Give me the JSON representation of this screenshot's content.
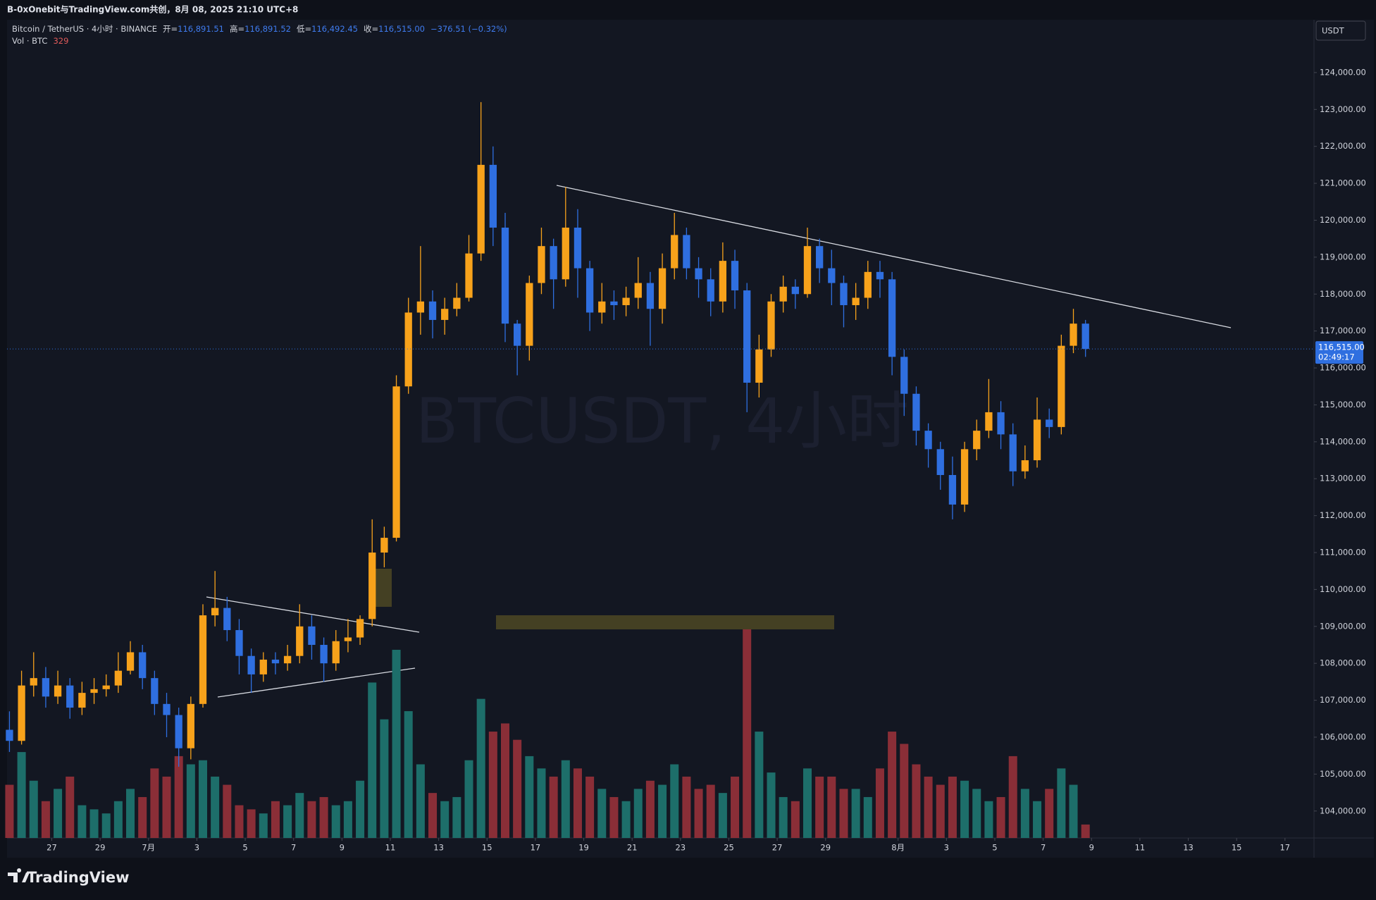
{
  "header": {
    "text": "B-0xOnebit与TradingView.com共创，8月 08, 2025 21:10 UTC+8"
  },
  "footer": {
    "brand": "TradingView"
  },
  "chart_data": {
    "type": "candlestick",
    "watermark": "BTCUSDT, 4小时",
    "symbol": "Bitcoin / TetherUS · 4小时 · BINANCE",
    "ohlc_legend": [
      {
        "label": "开=",
        "value": "116,891.51"
      },
      {
        "label": "高=",
        "value": "116,891.52"
      },
      {
        "label": "低=",
        "value": "116,492.45"
      },
      {
        "label": "收=",
        "value": "116,515.00"
      }
    ],
    "change": "−376.51 (−0.32%)",
    "volume_label": "Vol · BTC",
    "currency": "USDT",
    "last_price_label": "116,515.00",
    "countdown": "02:49:17",
    "up_color": "#f7a21b",
    "down_color": "#2f6fe0",
    "volume_up_color": "#1d6e6a",
    "volume_down_color": "#8a2e37",
    "x": [
      25.25,
      25.75,
      26.25,
      26.75,
      27.25,
      27.75,
      28.25,
      28.75,
      29.25,
      29.75,
      30.25,
      30.75,
      31.25,
      31.75,
      32.25,
      32.75,
      33.25,
      33.75,
      34.25,
      34.75,
      35.25,
      35.75,
      36.25,
      36.75,
      37.25,
      37.75,
      38.25,
      38.75,
      39.25,
      39.75,
      40.25,
      40.75,
      41.25,
      41.75,
      42.25,
      42.75,
      43.25,
      43.75,
      44.25,
      44.75,
      45.25,
      45.75,
      46.25,
      46.75,
      47.25,
      47.75,
      48.25,
      48.75,
      49.25,
      49.75,
      50.25,
      50.75,
      51.25,
      51.75,
      52.25,
      52.75,
      53.25,
      53.75,
      54.25,
      54.75,
      55.25,
      55.75,
      56.25,
      56.75,
      57.25,
      57.75,
      58.25,
      58.75,
      59.25,
      59.75,
      60.25,
      60.75,
      61.25,
      61.75,
      62.25,
      62.75,
      63.25,
      63.75,
      64.25,
      64.75,
      65.25,
      65.75,
      66.25,
      66.75,
      67.25,
      67.75,
      68.25,
      68.75,
      69.25,
      69.75
    ],
    "open": [
      106200,
      105900,
      107400,
      107600,
      107100,
      107400,
      106800,
      107200,
      107300,
      107400,
      107800,
      108300,
      107600,
      106900,
      106600,
      105700,
      106900,
      109300,
      109500,
      108900,
      108200,
      107700,
      108100,
      108000,
      108200,
      109000,
      108500,
      108000,
      108600,
      108700,
      109200,
      111000,
      111400,
      115500,
      117500,
      117800,
      117300,
      117600,
      117900,
      119100,
      121500,
      119800,
      117200,
      116600,
      118300,
      119300,
      118400,
      119800,
      118700,
      117500,
      117800,
      117700,
      117900,
      118300,
      117600,
      118700,
      119600,
      118700,
      118400,
      117800,
      118900,
      118100,
      115600,
      116500,
      117800,
      118200,
      118000,
      119300,
      118700,
      118300,
      117700,
      117900,
      118600,
      118400,
      116300,
      115300,
      114300,
      113800,
      113100,
      112300,
      113800,
      114300,
      114800,
      114200,
      113200,
      113500,
      114600,
      114400,
      116600,
      117200
    ],
    "high": [
      106700,
      107800,
      108300,
      107900,
      107800,
      107600,
      107500,
      107600,
      107700,
      108300,
      108600,
      108500,
      107800,
      107200,
      106800,
      107100,
      109600,
      110500,
      109800,
      109200,
      108400,
      108300,
      108300,
      108500,
      109600,
      109300,
      108700,
      108900,
      109200,
      109300,
      111900,
      111700,
      115800,
      117900,
      119300,
      118100,
      117900,
      118300,
      119600,
      123200,
      122000,
      120200,
      117300,
      118500,
      119800,
      119500,
      120900,
      120300,
      118900,
      118300,
      118100,
      118200,
      119000,
      118600,
      119100,
      120200,
      119800,
      119000,
      118700,
      119400,
      119200,
      118300,
      116900,
      118000,
      118500,
      118400,
      119800,
      119500,
      119200,
      118500,
      118300,
      118900,
      118900,
      118600,
      116500,
      115500,
      114500,
      114000,
      113600,
      114000,
      114600,
      115700,
      115100,
      114500,
      113900,
      115200,
      114900,
      116900,
      117600,
      117300
    ],
    "low": [
      105600,
      105800,
      107100,
      106800,
      106900,
      106500,
      106600,
      106900,
      107100,
      107200,
      107700,
      107300,
      106600,
      106000,
      105200,
      105400,
      106800,
      109000,
      108600,
      107700,
      107200,
      107500,
      107700,
      107800,
      108000,
      108100,
      107500,
      107800,
      108300,
      108500,
      109000,
      110600,
      111300,
      115300,
      116900,
      116800,
      116900,
      117400,
      117800,
      118900,
      119300,
      116700,
      115800,
      116200,
      118000,
      117600,
      118200,
      117900,
      117000,
      117200,
      117300,
      117400,
      117600,
      116600,
      117200,
      118400,
      118400,
      117900,
      117400,
      117500,
      117600,
      114800,
      115200,
      116300,
      117500,
      117600,
      117900,
      118300,
      117700,
      117100,
      117300,
      117600,
      117900,
      115800,
      114700,
      113900,
      113300,
      112700,
      111900,
      112100,
      113500,
      114100,
      113800,
      112800,
      113000,
      113300,
      114100,
      114200,
      116400,
      116300
    ],
    "close": [
      105900,
      107400,
      107600,
      107100,
      107400,
      106800,
      107200,
      107300,
      107400,
      107800,
      108300,
      107600,
      106900,
      106600,
      105700,
      106900,
      109300,
      109500,
      108900,
      108200,
      107700,
      108100,
      108000,
      108200,
      109000,
      108500,
      108000,
      108600,
      108700,
      109200,
      111000,
      111400,
      115500,
      117500,
      117800,
      117300,
      117600,
      117900,
      119100,
      121500,
      119800,
      117200,
      116600,
      118300,
      119300,
      118400,
      119800,
      118700,
      117500,
      117800,
      117700,
      117900,
      118300,
      117600,
      118700,
      119600,
      118700,
      118400,
      117800,
      118900,
      118100,
      115600,
      116500,
      117800,
      118200,
      118000,
      119300,
      118700,
      118300,
      117700,
      117900,
      118600,
      118400,
      116300,
      115300,
      114300,
      113800,
      113100,
      112300,
      113800,
      114300,
      114800,
      114200,
      113200,
      113500,
      114600,
      114400,
      116600,
      117200,
      116515
    ],
    "volume": [
      1300,
      2100,
      1400,
      900,
      1200,
      1500,
      800,
      700,
      600,
      900,
      1200,
      1000,
      1700,
      1500,
      2000,
      1800,
      1900,
      1500,
      1300,
      800,
      700,
      600,
      900,
      800,
      1100,
      900,
      1000,
      800,
      900,
      1400,
      3800,
      2900,
      4600,
      3100,
      1800,
      1100,
      900,
      1000,
      1900,
      3400,
      2600,
      2800,
      2400,
      2000,
      1700,
      1500,
      1900,
      1700,
      1500,
      1200,
      1000,
      900,
      1200,
      1400,
      1300,
      1800,
      1500,
      1200,
      1300,
      1100,
      1500,
      5100,
      2600,
      1600,
      1000,
      900,
      1700,
      1500,
      1500,
      1200,
      1200,
      1000,
      1700,
      2600,
      2300,
      1800,
      1500,
      1300,
      1500,
      1400,
      1200,
      900,
      1000,
      2000,
      1200,
      900,
      1200,
      1700,
      1300,
      329
    ],
    "xlim": [
      25.15,
      79.2
    ],
    "ylim": [
      103270,
      125430
    ],
    "y2lim": [
      0,
      20000
    ],
    "xticks": [
      {
        "value": 27,
        "label": "27"
      },
      {
        "value": 29,
        "label": "29"
      },
      {
        "value": 31,
        "label": "7月"
      },
      {
        "value": 33,
        "label": "3"
      },
      {
        "value": 35,
        "label": "5"
      },
      {
        "value": 37,
        "label": "7"
      },
      {
        "value": 39,
        "label": "9"
      },
      {
        "value": 41,
        "label": "11"
      },
      {
        "value": 43,
        "label": "13"
      },
      {
        "value": 45,
        "label": "15"
      },
      {
        "value": 47,
        "label": "17"
      },
      {
        "value": 49,
        "label": "19"
      },
      {
        "value": 51,
        "label": "21"
      },
      {
        "value": 53,
        "label": "23"
      },
      {
        "value": 55,
        "label": "25"
      },
      {
        "value": 57,
        "label": "27"
      },
      {
        "value": 59,
        "label": "29"
      },
      {
        "value": 62,
        "label": "8月"
      },
      {
        "value": 64,
        "label": "3"
      },
      {
        "value": 66,
        "label": "5"
      },
      {
        "value": 68,
        "label": "7"
      },
      {
        "value": 70,
        "label": "9"
      },
      {
        "value": 72,
        "label": "11"
      },
      {
        "value": 74,
        "label": "13"
      },
      {
        "value": 76,
        "label": "15"
      },
      {
        "value": 78,
        "label": "17"
      }
    ],
    "yticks": [
      {
        "value": 104000,
        "label": "104,000.00"
      },
      {
        "value": 105000,
        "label": "105,000.00"
      },
      {
        "value": 106000,
        "label": "106,000.00"
      },
      {
        "value": 107000,
        "label": "107,000.00"
      },
      {
        "value": 108000,
        "label": "108,000.00"
      },
      {
        "value": 109000,
        "label": "109,000.00"
      },
      {
        "value": 110000,
        "label": "110,000.00"
      },
      {
        "value": 111000,
        "label": "111,000.00"
      },
      {
        "value": 112000,
        "label": "112,000.00"
      },
      {
        "value": 113000,
        "label": "113,000.00"
      },
      {
        "value": 114000,
        "label": "114,000.00"
      },
      {
        "value": 115000,
        "label": "115,000.00"
      },
      {
        "value": 116000,
        "label": "116,000.00"
      },
      {
        "value": 117000,
        "label": "117,000.00"
      },
      {
        "value": 118000,
        "label": "118,000.00"
      },
      {
        "value": 119000,
        "label": "119,000.00"
      },
      {
        "value": 120000,
        "label": "120,000.00"
      },
      {
        "value": 121000,
        "label": "121,000.00"
      },
      {
        "value": 122000,
        "label": "122,000.00"
      },
      {
        "value": 123000,
        "label": "123,000.00"
      },
      {
        "value": 124000,
        "label": "124,000.00"
      }
    ]
  }
}
